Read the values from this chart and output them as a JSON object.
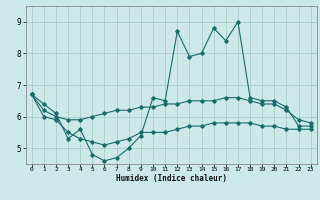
{
  "title": "",
  "xlabel": "Humidex (Indice chaleur)",
  "xlim": [
    -0.5,
    23.5
  ],
  "ylim": [
    4.5,
    9.5
  ],
  "yticks": [
    5,
    6,
    7,
    8,
    9
  ],
  "xticks": [
    0,
    1,
    2,
    3,
    4,
    5,
    6,
    7,
    8,
    9,
    10,
    11,
    12,
    13,
    14,
    15,
    16,
    17,
    18,
    19,
    20,
    21,
    22,
    23
  ],
  "bg_color": "#cce8e8",
  "grid_color": "#aacccc",
  "line_color": "#1a6b6b",
  "line1_x": [
    0,
    1,
    2,
    3,
    4,
    5,
    6,
    7,
    8,
    9,
    10,
    11,
    12,
    13,
    14,
    15,
    16,
    17,
    18,
    19,
    20,
    21,
    22,
    23
  ],
  "line1_y": [
    6.7,
    6.4,
    6.1,
    5.3,
    5.6,
    4.8,
    4.6,
    4.7,
    5.0,
    5.4,
    6.6,
    6.5,
    8.7,
    7.9,
    8.0,
    8.8,
    8.4,
    9.0,
    6.6,
    6.5,
    6.5,
    6.3,
    5.7,
    5.7
  ],
  "line2_x": [
    0,
    1,
    2,
    3,
    4,
    5,
    6,
    7,
    8,
    9,
    10,
    11,
    12,
    13,
    14,
    15,
    16,
    17,
    18,
    19,
    20,
    21,
    22,
    23
  ],
  "line2_y": [
    6.7,
    6.2,
    6.0,
    5.9,
    5.9,
    6.0,
    6.1,
    6.2,
    6.2,
    6.3,
    6.3,
    6.4,
    6.4,
    6.5,
    6.5,
    6.5,
    6.6,
    6.6,
    6.5,
    6.4,
    6.4,
    6.2,
    5.9,
    5.8
  ],
  "line3_x": [
    0,
    1,
    2,
    3,
    4,
    5,
    6,
    7,
    8,
    9,
    10,
    11,
    12,
    13,
    14,
    15,
    16,
    17,
    18,
    19,
    20,
    21,
    22,
    23
  ],
  "line3_y": [
    6.7,
    6.0,
    5.9,
    5.5,
    5.3,
    5.2,
    5.1,
    5.2,
    5.3,
    5.5,
    5.5,
    5.5,
    5.6,
    5.7,
    5.7,
    5.8,
    5.8,
    5.8,
    5.8,
    5.7,
    5.7,
    5.6,
    5.6,
    5.6
  ]
}
